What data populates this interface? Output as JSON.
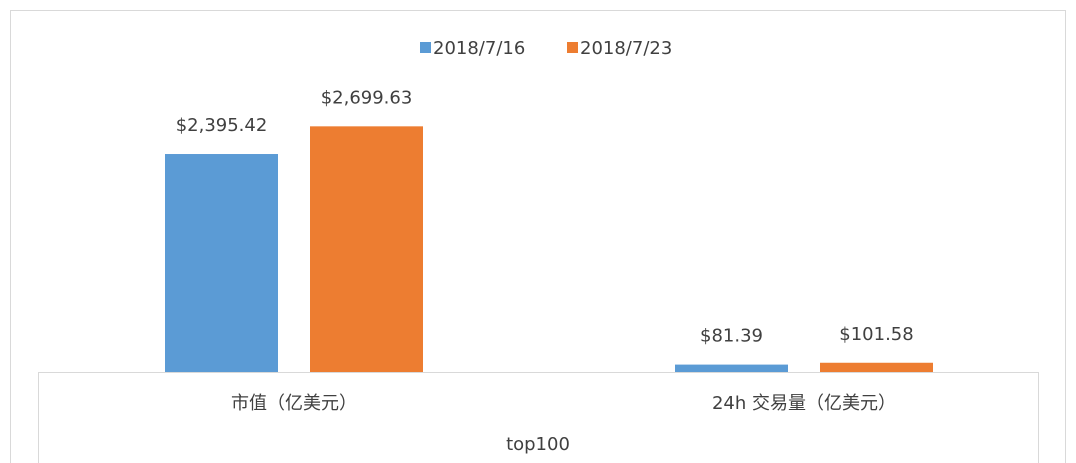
{
  "chart_data": {
    "type": "bar",
    "categories": [
      "市值（亿美元）",
      "24h 交易量（亿美元）"
    ],
    "group_label": "top100",
    "series": [
      {
        "name": "2018/7/16",
        "color": "#5b9bd5",
        "values": [
          2395.42,
          81.39
        ],
        "value_labels": [
          "$2,395.42",
          "$81.39"
        ]
      },
      {
        "name": "2018/7/23",
        "color": "#ed7d31",
        "values": [
          2699.63,
          101.58
        ],
        "value_labels": [
          "$2,699.63",
          "$101.58"
        ]
      }
    ],
    "ylim": [
      0,
      3000
    ],
    "legend": "top"
  }
}
